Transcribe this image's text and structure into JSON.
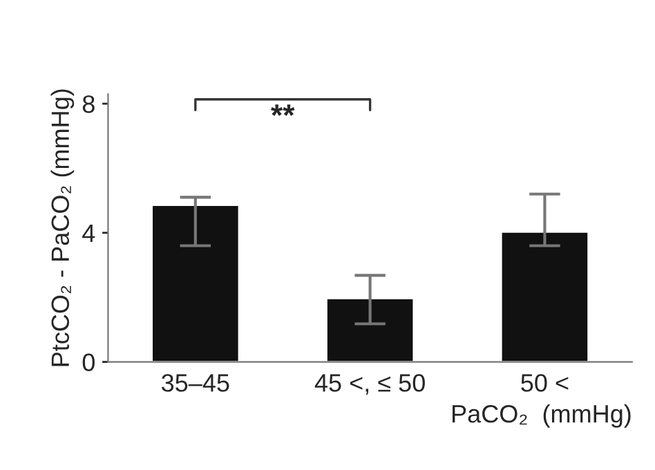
{
  "chart_data": {
    "type": "bar",
    "ylabel": "PtcCO₂ - PaCO₂ (mmHg)",
    "xlabel": "PaCO₂  (mmHg)",
    "categories": [
      "35–45",
      "45 <, ≤ 50",
      "50 <"
    ],
    "values": [
      4.86,
      1.97,
      4.03
    ],
    "errors": [
      [
        3.6,
        5.1
      ],
      [
        1.18,
        2.68
      ],
      [
        3.6,
        5.2
      ]
    ],
    "color": "#111111",
    "ylim": [
      0,
      8.3
    ],
    "yticks": [
      0,
      4,
      8
    ],
    "annotations": [
      "**"
    ]
  }
}
